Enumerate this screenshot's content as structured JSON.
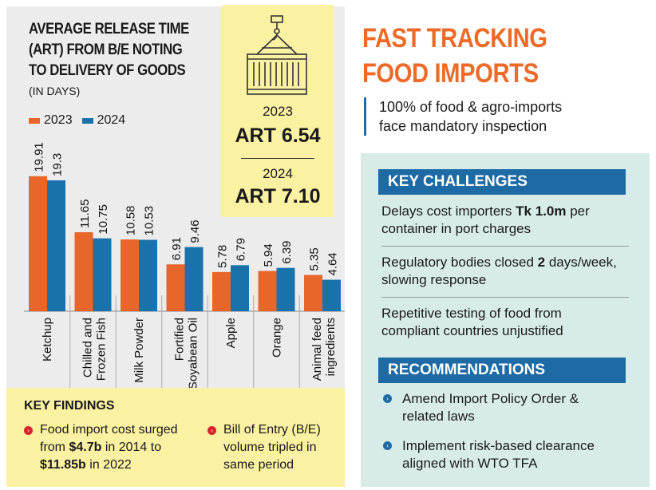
{
  "chart_data": {
    "type": "bar",
    "title": "AVERAGE RELEASE TIME (ART) FROM B/E NOTING TO DELIVERY OF GOODS",
    "subtitle": "(IN DAYS)",
    "legend_position": "top-left",
    "grid": false,
    "ylim": [
      0,
      22
    ],
    "categories": [
      {
        "line1": "Ketchup",
        "line2": ""
      },
      {
        "line1": "Chilled and",
        "line2": "Frozen Fish"
      },
      {
        "line1": "Milk Powder",
        "line2": ""
      },
      {
        "line1": "Fortified",
        "line2": "Soyabean Oil"
      },
      {
        "line1": "Apple",
        "line2": ""
      },
      {
        "line1": "Orange",
        "line2": ""
      },
      {
        "line1": "Animal feed",
        "line2": "ingredients"
      }
    ],
    "series": [
      {
        "name": "2023",
        "color": "#e9662a",
        "values": [
          19.91,
          11.65,
          10.58,
          6.91,
          5.78,
          5.94,
          5.35
        ],
        "labels": [
          "19.91",
          "11.65",
          "10.58",
          "6.91",
          "5.78",
          "5.94",
          "5.35"
        ]
      },
      {
        "name": "2024",
        "color": "#1a72ab",
        "values": [
          19.3,
          10.75,
          10.53,
          9.46,
          6.79,
          6.39,
          4.64
        ],
        "labels": [
          "19.3",
          "10.75",
          "10.53",
          "9.46",
          "6.79",
          "6.39",
          "4.64"
        ]
      }
    ]
  },
  "art_box": {
    "icon": "shipping-container-icon",
    "year_2023": "2023",
    "art_2023": "ART 6.54",
    "year_2024": "2024",
    "art_2024": "ART 7.10"
  },
  "key_findings": {
    "title": "KEY FINDINGS",
    "item1": {
      "line1": "Food import cost surged",
      "line2_pre": "from ",
      "line2_bold": "$4.7b",
      "line2_post": " in 2014 to",
      "line3_bold": "$11.85b",
      "line3_post": " in 2022"
    },
    "item2": {
      "line1": "Bill of Entry (B/E)",
      "line2": "volume tripled in",
      "line3": "same period"
    },
    "bullet_color": "#d7232f"
  },
  "headline": {
    "line1": "FAST TRACKING",
    "line2": "FOOD IMPORTS",
    "color": "#ee6a27"
  },
  "highlight": {
    "line1": "100% of food & agro-imports",
    "line2": "face mandatory inspection"
  },
  "challenges": {
    "title": "KEY CHALLENGES",
    "item1": {
      "line1_pre": "Delays cost importers ",
      "line1_bold": "Tk 1.0m",
      "line1_post": " per",
      "line2": "container in port charges"
    },
    "item2": {
      "line1_pre": "Regulatory bodies closed ",
      "line1_bold": "2",
      "line1_post": " days/week,",
      "line2": "slowing response"
    },
    "item3": {
      "line1": "Repetitive testing of food from",
      "line2": "compliant countries unjustified"
    }
  },
  "recommendations": {
    "title": "RECOMMENDATIONS",
    "item1": {
      "line1": "Amend Import Policy Order &",
      "line2": "related laws"
    },
    "item2": {
      "line1": "Implement risk-based clearance",
      "line2": "aligned with WTO TFA"
    }
  },
  "colors": {
    "accent_blue": "#1d6aa5",
    "panel_gray": "#ececec",
    "panel_yellow": "#fbf1a3",
    "panel_teal": "#d7ece9"
  }
}
